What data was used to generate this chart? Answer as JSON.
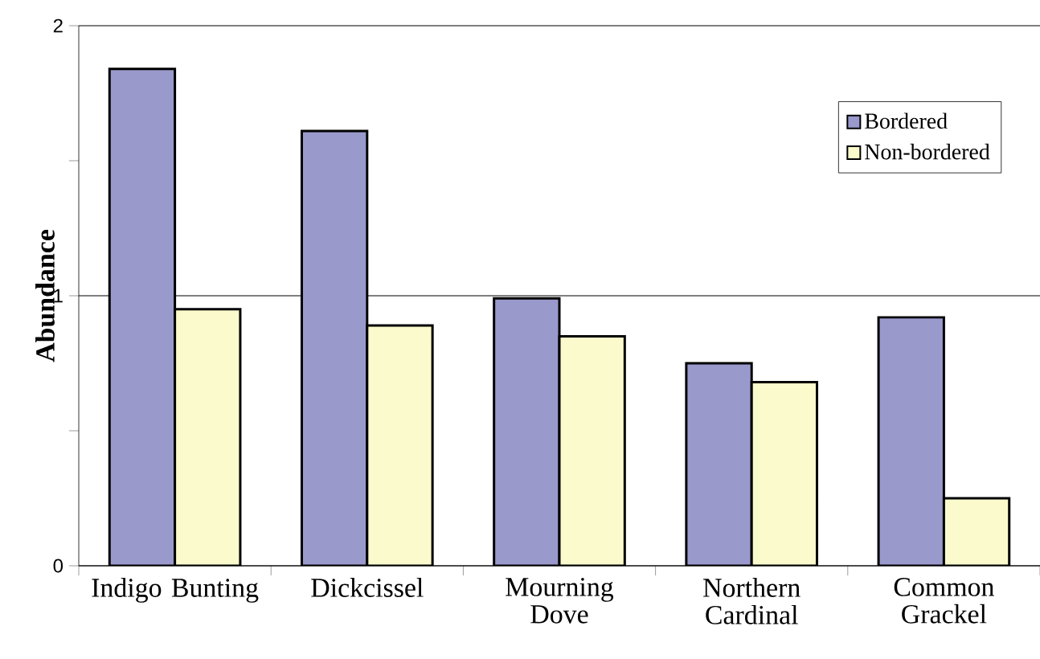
{
  "chart_data": {
    "type": "bar",
    "ylabel": "Abundance",
    "categories": [
      "Indigo Bunting",
      "Dickcissel",
      "Mourning Dove",
      "Northern Cardinal",
      "Common Grackel"
    ],
    "series": [
      {
        "name": "Bordered",
        "color": "#9999cc",
        "values": [
          1.84,
          1.61,
          0.99,
          0.75,
          0.92
        ]
      },
      {
        "name": "Non-bordered",
        "color": "#fafacc",
        "values": [
          0.95,
          0.89,
          0.85,
          0.68,
          0.25
        ]
      }
    ],
    "ylim": [
      0,
      2
    ],
    "yticks": [
      0,
      {
        "value": 0.5,
        "label": null
      },
      1,
      {
        "value": 1.5,
        "label": null
      },
      2
    ],
    "grid": "y",
    "legend": "top right"
  }
}
